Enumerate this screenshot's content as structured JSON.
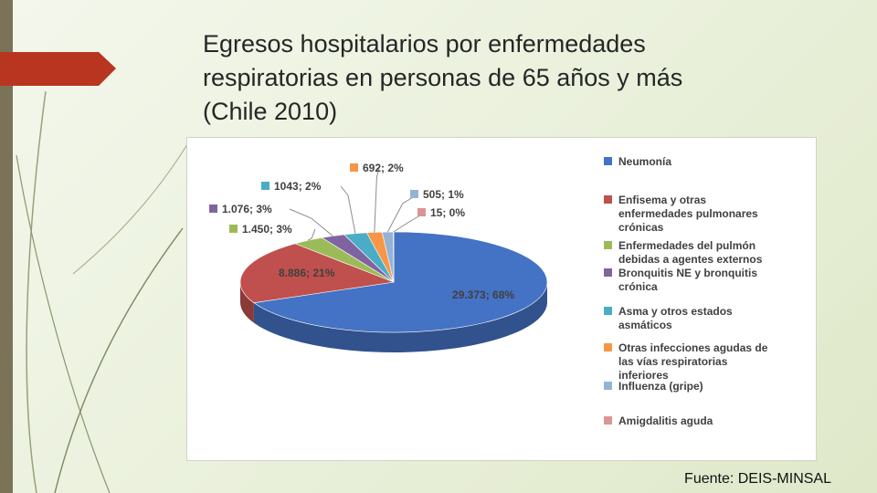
{
  "slide": {
    "title_lines": [
      "Egresos hospitalarios por enfermedades",
      "respiratorias en personas de 65 años y más",
      "(Chile 2010)"
    ],
    "source": "Fuente: DEIS-MINSAL",
    "accent_color": "#b8361f",
    "side_bar_color": "#7a7358"
  },
  "chart_data": {
    "type": "pie",
    "style": "3d",
    "title": "",
    "legend_position": "right",
    "slices": [
      {
        "name": "Neumonía",
        "value": 29373,
        "percent": 68,
        "label": "29.373; 68%",
        "color": "#4472c4"
      },
      {
        "name": "Enfisema y otras enfermedades pulmonares crónicas",
        "value": 8886,
        "percent": 21,
        "label": "8.886; 21%",
        "color": "#c0504d"
      },
      {
        "name": "Enfermedades del pulmón debidas a agentes externos",
        "value": 1450,
        "percent": 3,
        "label": "1.450; 3%",
        "color": "#9bbb59"
      },
      {
        "name": "Bronquitis NE y bronquitis crónica",
        "value": 1076,
        "percent": 3,
        "label": "1.076; 3%",
        "color": "#8064a2"
      },
      {
        "name": "Asma y otros estados asmáticos",
        "value": 1043,
        "percent": 2,
        "label": "1043; 2%",
        "color": "#4bacc6"
      },
      {
        "name": "Otras infecciones agudas de las vías respiratorias inferiores",
        "value": 692,
        "percent": 2,
        "label": "692; 2%",
        "color": "#f79646"
      },
      {
        "name": "Influenza (gripe)",
        "value": 505,
        "percent": 1,
        "label": "505; 1%",
        "color": "#95b3d7"
      },
      {
        "name": "Amigdalitis aguda",
        "value": 15,
        "percent": 0,
        "label": "15; 0%",
        "color": "#d99694"
      }
    ],
    "legend_lines": [
      [
        "Neumonía"
      ],
      [
        "Enfisema y otras",
        "enfermedades pulmonares",
        "crónicas"
      ],
      [
        "Enfermedades del pulmón",
        "debidas a agentes externos"
      ],
      [
        "Bronquitis NE y bronquitis",
        "crónica"
      ],
      [
        "Asma y otros estados",
        "asmáticos"
      ],
      [
        "Otras infecciones agudas de",
        "las vías respiratorias",
        "inferiores"
      ],
      [
        "Influenza (gripe)"
      ],
      [
        "Amigdalitis aguda"
      ]
    ]
  }
}
